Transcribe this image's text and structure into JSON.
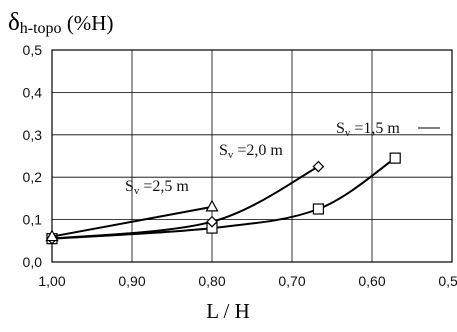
{
  "chart_data": {
    "type": "line",
    "y_axis": {
      "symbol": "δ",
      "subscript": "h-topo",
      "unit": " (%H)",
      "range": [
        0.0,
        0.5
      ],
      "ticks": [
        "0,0",
        "0,1",
        "0,2",
        "0,3",
        "0,4",
        "0,5"
      ]
    },
    "x_axis": {
      "label": "L / H",
      "range": [
        1.0,
        0.5
      ],
      "direction": "reversed",
      "ticks": [
        "1,00",
        "0,90",
        "0,80",
        "0,70",
        "0,60",
        "0,50"
      ]
    },
    "grid": true,
    "legend": "none",
    "series": [
      {
        "name_prefix": "S",
        "name_subscript": "v",
        "name_value": " =1,5 m",
        "marker": "square",
        "points": [
          {
            "x": 1.0,
            "y": 0.055
          },
          {
            "x": 0.8,
            "y": 0.08
          },
          {
            "x": 0.667,
            "y": 0.125
          },
          {
            "x": 0.571,
            "y": 0.245
          }
        ]
      },
      {
        "name_prefix": "S",
        "name_subscript": "v",
        "name_value": " =2,0 m",
        "marker": "diamond",
        "points": [
          {
            "x": 1.0,
            "y": 0.055
          },
          {
            "x": 0.8,
            "y": 0.095
          },
          {
            "x": 0.667,
            "y": 0.225
          }
        ]
      },
      {
        "name_prefix": "S",
        "name_subscript": "v",
        "name_value": " =2,5 m",
        "marker": "triangle",
        "points": [
          {
            "x": 1.0,
            "y": 0.06
          },
          {
            "x": 0.8,
            "y": 0.13
          }
        ]
      }
    ]
  }
}
